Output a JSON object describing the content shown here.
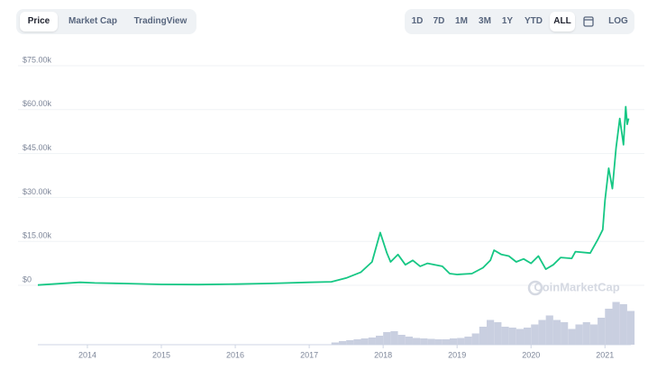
{
  "toolbar": {
    "tabs": [
      "Price",
      "Market Cap",
      "TradingView"
    ],
    "selected_tab": 0,
    "ranges": [
      "1D",
      "7D",
      "1M",
      "3M",
      "1Y",
      "YTD",
      "ALL"
    ],
    "selected_range": 6,
    "log_button": "LOG"
  },
  "chart_data": {
    "type": "line",
    "color": "#16c784",
    "grid": true,
    "watermark": "CoinMarketCap",
    "x": [
      2013.33,
      2013.9,
      2014.1,
      2014.5,
      2015.0,
      2015.5,
      2016.0,
      2016.5,
      2017.0,
      2017.3,
      2017.5,
      2017.7,
      2017.85,
      2017.96,
      2018.05,
      2018.1,
      2018.2,
      2018.3,
      2018.4,
      2018.5,
      2018.6,
      2018.8,
      2018.9,
      2019.0,
      2019.2,
      2019.35,
      2019.45,
      2019.5,
      2019.6,
      2019.7,
      2019.8,
      2019.9,
      2020.0,
      2020.1,
      2020.2,
      2020.3,
      2020.4,
      2020.55,
      2020.6,
      2020.8,
      2020.9,
      2020.97,
      2021.0,
      2021.05,
      2021.1,
      2021.15,
      2021.2,
      2021.25,
      2021.28,
      2021.3,
      2021.32
    ],
    "values": [
      100,
      1000,
      800,
      600,
      300,
      250,
      400,
      650,
      1000,
      1200,
      2500,
      4500,
      8000,
      18000,
      11000,
      8000,
      10500,
      7000,
      8500,
      6500,
      7500,
      6500,
      4000,
      3700,
      4000,
      6000,
      8500,
      12000,
      10500,
      10000,
      8000,
      9000,
      7500,
      10000,
      5500,
      7000,
      9500,
      9200,
      11500,
      11000,
      15500,
      19000,
      29000,
      40000,
      33000,
      47000,
      57000,
      48000,
      61000,
      55000,
      57000
    ],
    "xlim": [
      2013.33,
      2021.35
    ],
    "xticks": [
      2014,
      2015,
      2016,
      2017,
      2018,
      2019,
      2020,
      2021
    ],
    "ylim": [
      0,
      75000
    ],
    "yticks": [
      {
        "value": 0,
        "label": "$0"
      },
      {
        "value": 15000,
        "label": "$15.00k"
      },
      {
        "value": 30000,
        "label": "$30.00k"
      },
      {
        "value": 45000,
        "label": "$45.00k"
      },
      {
        "value": 60000,
        "label": "$60.00k"
      },
      {
        "value": 75000,
        "label": "$75.00k"
      }
    ],
    "volume": {
      "color": "#c9cfe0",
      "y2lim": [
        0,
        100
      ],
      "x": [
        2017.3,
        2017.4,
        2017.5,
        2017.6,
        2017.7,
        2017.8,
        2017.9,
        2018.0,
        2018.1,
        2018.2,
        2018.3,
        2018.4,
        2018.5,
        2018.6,
        2018.7,
        2018.8,
        2018.9,
        2019.0,
        2019.1,
        2019.2,
        2019.3,
        2019.4,
        2019.5,
        2019.6,
        2019.7,
        2019.8,
        2019.9,
        2020.0,
        2020.1,
        2020.2,
        2020.3,
        2020.4,
        2020.5,
        2020.6,
        2020.7,
        2020.8,
        2020.9,
        2021.0,
        2021.1,
        2021.2,
        2021.3
      ],
      "values": [
        5,
        8,
        10,
        12,
        14,
        16,
        20,
        28,
        30,
        22,
        18,
        15,
        14,
        13,
        12,
        12,
        14,
        15,
        18,
        25,
        40,
        55,
        50,
        40,
        38,
        35,
        38,
        45,
        55,
        65,
        55,
        50,
        35,
        45,
        50,
        45,
        60,
        80,
        95,
        90,
        75
      ]
    }
  }
}
